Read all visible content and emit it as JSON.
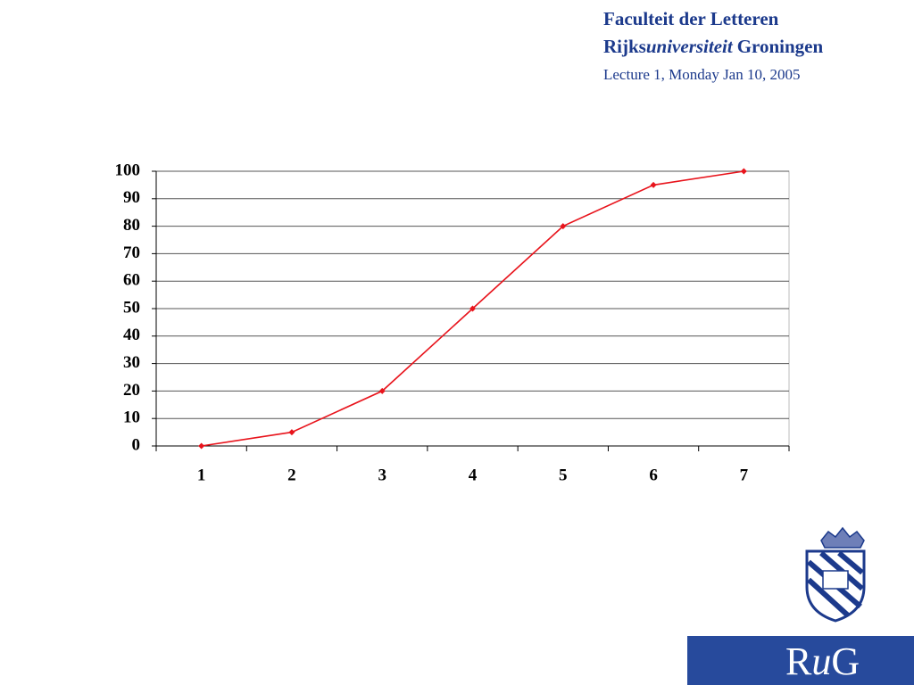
{
  "header": {
    "line1": "Faculteit der Letteren",
    "line2": [
      "Rijks",
      "universiteit",
      "Groningen"
    ],
    "line3": "Lecture 1, Monday Jan 10, 2005"
  },
  "logo": {
    "letters": [
      "R",
      "u",
      "G"
    ]
  },
  "chart_data": {
    "type": "line",
    "categories": [
      "1",
      "2",
      "3",
      "4",
      "5",
      "6",
      "7"
    ],
    "series": [
      {
        "color": "#e8141c",
        "values": [
          0,
          5,
          20,
          50,
          80,
          95,
          100
        ]
      }
    ],
    "ylim": [
      0,
      100
    ],
    "yticks": [
      0,
      10,
      20,
      30,
      40,
      50,
      60,
      70,
      80,
      90,
      100
    ],
    "grid": true
  }
}
